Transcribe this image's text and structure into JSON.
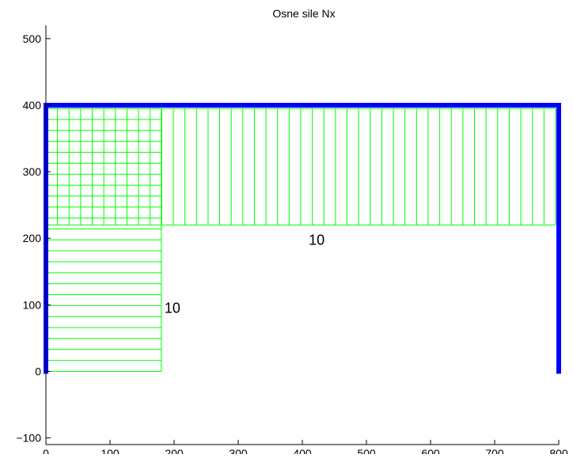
{
  "chart_data": {
    "type": "structural-diagram",
    "title": "Osne sile Nx",
    "xlim": [
      0,
      800
    ],
    "ylim": [
      -110,
      520
    ],
    "x_ticks": [
      0,
      100,
      200,
      300,
      400,
      500,
      600,
      700,
      800
    ],
    "y_ticks": [
      -100,
      0,
      100,
      200,
      300,
      400,
      500
    ],
    "grid": false,
    "frame": [
      {
        "name": "left-column",
        "x": [
          0,
          0
        ],
        "y": [
          0,
          400
        ]
      },
      {
        "name": "top-beam",
        "x": [
          0,
          800
        ],
        "y": [
          400,
          400
        ]
      },
      {
        "name": "right-column",
        "x": [
          800,
          800
        ],
        "y": [
          400,
          0
        ]
      }
    ],
    "force_diagrams": [
      {
        "member": "left-column",
        "value": 10,
        "x_range": [
          0,
          180
        ],
        "y_range": [
          0,
          395
        ]
      },
      {
        "member": "top-beam",
        "value": 10,
        "x_range": [
          0,
          795
        ],
        "y_range": [
          220,
          395
        ]
      }
    ],
    "annotations": [
      {
        "text": "10",
        "x": 410,
        "y": 190
      },
      {
        "text": "10",
        "x": 185,
        "y": 88
      }
    ],
    "colors": {
      "frame": "#0000ff",
      "diagram": "#00ff00",
      "axes": "#000000"
    }
  }
}
